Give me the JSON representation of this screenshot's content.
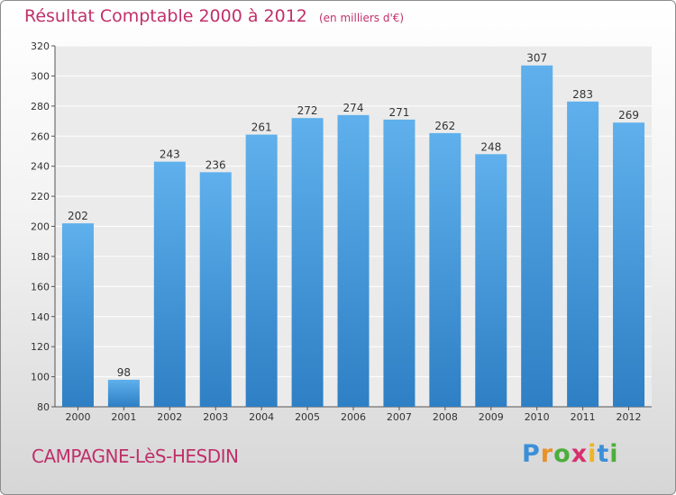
{
  "chart_data": {
    "type": "bar",
    "title": "Résultat Comptable 2000 à 2012",
    "subtitle": "(en milliers d'€)",
    "categories": [
      "2000",
      "2001",
      "2002",
      "2003",
      "2004",
      "2005",
      "2006",
      "2007",
      "2008",
      "2009",
      "2010",
      "2011",
      "2012"
    ],
    "values": [
      202,
      98,
      243,
      236,
      261,
      272,
      274,
      271,
      262,
      248,
      307,
      283,
      269
    ],
    "ylim": [
      80,
      320
    ],
    "yticks": [
      80,
      100,
      120,
      140,
      160,
      180,
      200,
      220,
      240,
      260,
      280,
      300,
      320
    ],
    "xlabel": "",
    "ylabel": "",
    "grid": true,
    "bar_color": "#4ba3e3"
  },
  "footer": {
    "location": "CAMPAGNE-LèS-HESDIN"
  },
  "brand": {
    "letters": [
      "P",
      "r",
      "o",
      "x",
      "i",
      "t",
      "i"
    ],
    "colors": [
      "#3a8fd8",
      "#e8912a",
      "#4cae3c",
      "#d6306e",
      "#f0b423",
      "#3a8fd8",
      "#4cae3c"
    ]
  }
}
